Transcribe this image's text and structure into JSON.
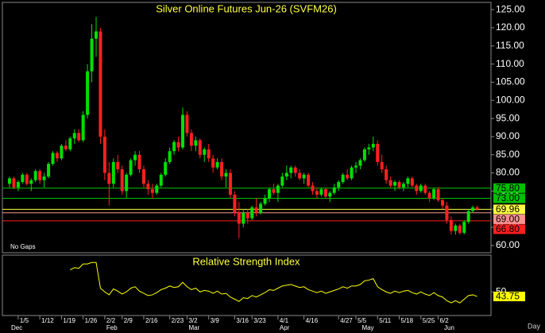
{
  "chart_data": [
    {
      "type": "candlestick",
      "title": "Silver Online Futures Jun-26 (SVFM26)",
      "annotations": [
        "No Gaps",
        "Day"
      ],
      "up_color": "#00e000",
      "down_color": "#ff2020",
      "categories": [
        null,
        null,
        "1/5",
        null,
        null,
        null,
        null,
        "1/12",
        null,
        null,
        null,
        null,
        "1/19",
        null,
        null,
        null,
        null,
        "1/26",
        null,
        null,
        null,
        null,
        "2/2",
        null,
        null,
        null,
        "2/9",
        null,
        null,
        null,
        null,
        "2/16",
        null,
        null,
        null,
        null,
        null,
        "2/23",
        null,
        null,
        null,
        "3/2",
        null,
        null,
        null,
        null,
        "3/9",
        null,
        null,
        null,
        null,
        null,
        "3/16",
        null,
        null,
        null,
        "3/23",
        null,
        null,
        null,
        null,
        null,
        "4/1",
        null,
        null,
        null,
        null,
        null,
        "4/16",
        null,
        null,
        null,
        null,
        null,
        null,
        null,
        "4/27",
        null,
        null,
        null,
        "5/5",
        null,
        null,
        null,
        null,
        "5/11",
        null,
        null,
        null,
        null,
        "5/18",
        null,
        null,
        null,
        null,
        "5/25",
        null,
        null,
        null,
        "6/2",
        null,
        null,
        null,
        null,
        null,
        null,
        null,
        null,
        null
      ],
      "months": [
        "Dec",
        null,
        null,
        null,
        null,
        null,
        null,
        null,
        null,
        null,
        null,
        null,
        null,
        null,
        null,
        null,
        null,
        null,
        null,
        null,
        null,
        null,
        "Feb",
        null,
        null,
        null,
        null,
        null,
        null,
        null,
        null,
        null,
        null,
        null,
        null,
        null,
        null,
        null,
        null,
        null,
        null,
        "Mar",
        null,
        null,
        null,
        null,
        null,
        null,
        null,
        null,
        null,
        null,
        null,
        null,
        null,
        null,
        null,
        null,
        null,
        null,
        null,
        null,
        "Apr",
        null,
        null,
        null,
        null,
        null,
        null,
        null,
        null,
        null,
        null,
        null,
        null,
        null,
        null,
        null,
        null,
        null,
        null,
        "May",
        null,
        null,
        null,
        null,
        null,
        null,
        null,
        null,
        null,
        null,
        null,
        null,
        null,
        null,
        null,
        null,
        null,
        null,
        "Jun",
        null,
        null,
        null,
        null,
        null,
        null,
        null,
        null
      ],
      "ohlc": [
        [
          77,
          79,
          76,
          78.5
        ],
        [
          78.5,
          79,
          75.5,
          76
        ],
        [
          76,
          78,
          75,
          77.5
        ],
        [
          77.5,
          80,
          77,
          79.5
        ],
        [
          79.5,
          80,
          76.5,
          77
        ],
        [
          77,
          78.5,
          75,
          78
        ],
        [
          78,
          81,
          77.5,
          80.5
        ],
        [
          80.5,
          81,
          77,
          78
        ],
        [
          78,
          80,
          76,
          79
        ],
        [
          79,
          83,
          78.5,
          82.5
        ],
        [
          82.5,
          86,
          82,
          85.5
        ],
        [
          85.5,
          86,
          83,
          84
        ],
        [
          84,
          88,
          83.5,
          87.5
        ],
        [
          87.5,
          89,
          86,
          86.5
        ],
        [
          86.5,
          90,
          86,
          89.5
        ],
        [
          89.5,
          92,
          88,
          91
        ],
        [
          91,
          92,
          88.5,
          89
        ],
        [
          89,
          97,
          88.5,
          96
        ],
        [
          96,
          110,
          95,
          108
        ],
        [
          108,
          121,
          105,
          117
        ],
        [
          117,
          123,
          112,
          119
        ],
        [
          119,
          120,
          88,
          90
        ],
        [
          90,
          92,
          78,
          80
        ],
        [
          80,
          83,
          71,
          77
        ],
        [
          77,
          84,
          76,
          83
        ],
        [
          83,
          85,
          80,
          81
        ],
        [
          81,
          82,
          74,
          75
        ],
        [
          75,
          80,
          73,
          79.5
        ],
        [
          79.5,
          84,
          79,
          83.5
        ],
        [
          83.5,
          86,
          82,
          85
        ],
        [
          85,
          86,
          80,
          81
        ],
        [
          81,
          82,
          76,
          77
        ],
        [
          77,
          78,
          74,
          75.5
        ],
        [
          75.5,
          77,
          73,
          74.5
        ],
        [
          74.5,
          77,
          74,
          76.5
        ],
        [
          76.5,
          80,
          76,
          79.5
        ],
        [
          79.5,
          84,
          79,
          83
        ],
        [
          83,
          87,
          82.5,
          86
        ],
        [
          86,
          89,
          85,
          88.5
        ],
        [
          88.5,
          90,
          86,
          87
        ],
        [
          87,
          98,
          86.5,
          96
        ],
        [
          96,
          97,
          90,
          91
        ],
        [
          91,
          92,
          86,
          87.5
        ],
        [
          87.5,
          90,
          86,
          89
        ],
        [
          89,
          89.5,
          84,
          85
        ],
        [
          85,
          87,
          83,
          86.5
        ],
        [
          86.5,
          88,
          83,
          84
        ],
        [
          84,
          85,
          80,
          81.5
        ],
        [
          81.5,
          84,
          81,
          83
        ],
        [
          83,
          84,
          78,
          79
        ],
        [
          79,
          81,
          76,
          80
        ],
        [
          80,
          81,
          73,
          74
        ],
        [
          74,
          75,
          68,
          69
        ],
        [
          69,
          72,
          62,
          66
        ],
        [
          66,
          70,
          65,
          69
        ],
        [
          69,
          70,
          66,
          67.5
        ],
        [
          67.5,
          71,
          67,
          70.5
        ],
        [
          70.5,
          73,
          68,
          69
        ],
        [
          69,
          72,
          68.5,
          71.5
        ],
        [
          71.5,
          74,
          71,
          73
        ],
        [
          73,
          76,
          72,
          75.5
        ],
        [
          75.5,
          77,
          74,
          74.5
        ],
        [
          74.5,
          77,
          72,
          76.5
        ],
        [
          76.5,
          80,
          76,
          79
        ],
        [
          79,
          82,
          78,
          80
        ],
        [
          80,
          82,
          78.5,
          81.5
        ],
        [
          81.5,
          82,
          79,
          80
        ],
        [
          80,
          81,
          78,
          78.5
        ],
        [
          78.5,
          80,
          77,
          79.5
        ],
        [
          79.5,
          80,
          76,
          76.5
        ],
        [
          76.5,
          77.5,
          74,
          75
        ],
        [
          75,
          76,
          73,
          74
        ],
        [
          74,
          76,
          73.5,
          75.5
        ],
        [
          75.5,
          76,
          73,
          73.5
        ],
        [
          73.5,
          75,
          72,
          74.5
        ],
        [
          74.5,
          77,
          74,
          76
        ],
        [
          76,
          78,
          75,
          77.5
        ],
        [
          77.5,
          80,
          77,
          79.5
        ],
        [
          79.5,
          81,
          78,
          78.5
        ],
        [
          78.5,
          82,
          78,
          81.5
        ],
        [
          81.5,
          83,
          80,
          82
        ],
        [
          82,
          84,
          81,
          83.5
        ],
        [
          83.5,
          87,
          83,
          86.5
        ],
        [
          86.5,
          88,
          85,
          87
        ],
        [
          87,
          90,
          86,
          88
        ],
        [
          88,
          89,
          82,
          83
        ],
        [
          83,
          85,
          80,
          81
        ],
        [
          81,
          82,
          77,
          78
        ],
        [
          78,
          79,
          76,
          76.5
        ],
        [
          76.5,
          78,
          75,
          77.5
        ],
        [
          77.5,
          78,
          75.5,
          76
        ],
        [
          76,
          77.5,
          75,
          77
        ],
        [
          77,
          79,
          76,
          78.5
        ],
        [
          78.5,
          79,
          76,
          76.5
        ],
        [
          76.5,
          77,
          74,
          75
        ],
        [
          75,
          77,
          74.5,
          76.5
        ],
        [
          76.5,
          77,
          74,
          74.5
        ],
        [
          74.5,
          75,
          72,
          73
        ],
        [
          73,
          76,
          72.5,
          75.5
        ],
        [
          75.5,
          76,
          72,
          72.5
        ],
        [
          72.5,
          73,
          70,
          71
        ],
        [
          71,
          72,
          66,
          67
        ],
        [
          67,
          68,
          63,
          64
        ],
        [
          64,
          66,
          63,
          65.5
        ],
        [
          65.5,
          66,
          63,
          63.5
        ],
        [
          63.5,
          67,
          63,
          66.5
        ],
        [
          66.5,
          70,
          66,
          69.5
        ],
        [
          69.5,
          71,
          69,
          70.5
        ],
        [
          70.5,
          71,
          69.5,
          69.96
        ]
      ],
      "levels": [
        {
          "value": 75.8,
          "label": "75.80",
          "color": "#00c000"
        },
        {
          "value": 73,
          "label": "73.00",
          "color": "#00c000"
        },
        {
          "value": 69.96,
          "label": "69.96",
          "color": "#ffff40"
        },
        {
          "value": 69,
          "label": "69.00",
          "color": "#ff9090"
        },
        {
          "value": 66.8,
          "label": "66.80",
          "color": "#ff2020"
        }
      ],
      "ylim": [
        58,
        127
      ],
      "yticks": [
        {
          "value": 125,
          "label": "125.00"
        },
        {
          "value": 120,
          "label": "120.00"
        },
        {
          "value": 115,
          "label": "115.00"
        },
        {
          "value": 110,
          "label": "110.00"
        },
        {
          "value": 105,
          "label": "105.00"
        },
        {
          "value": 100,
          "label": "100.00"
        },
        {
          "value": 95,
          "label": "95.00"
        },
        {
          "value": 90,
          "label": "90.00"
        },
        {
          "value": 85,
          "label": "85.00"
        },
        {
          "value": 80,
          "label": "80.00"
        },
        {
          "value": 75,
          "label": "75.00"
        },
        {
          "value": 70,
          "label": "70.00"
        },
        {
          "value": 65,
          "label": "65.00"
        },
        {
          "value": 60,
          "label": "60.00"
        }
      ]
    },
    {
      "type": "line",
      "title": "Relative Strength Index",
      "color": "#ffff00",
      "values": [
        null,
        null,
        null,
        null,
        null,
        null,
        null,
        null,
        null,
        null,
        null,
        null,
        null,
        null,
        80,
        83,
        82,
        88,
        88,
        90,
        90,
        55,
        50,
        46,
        54,
        51,
        47,
        50,
        55,
        57,
        51,
        48,
        45,
        46,
        49,
        53,
        55,
        58,
        56,
        57,
        63,
        57,
        53,
        55,
        50,
        52,
        51,
        48,
        51,
        47,
        48,
        43,
        40,
        37,
        42,
        41,
        45,
        43,
        46,
        49,
        53,
        52,
        55,
        58,
        59,
        60,
        58,
        56,
        57,
        53,
        51,
        49,
        51,
        48,
        50,
        52,
        54,
        57,
        55,
        58,
        58,
        60,
        65,
        66,
        68,
        57,
        53,
        50,
        48,
        51,
        49,
        51,
        52,
        49,
        47,
        50,
        47,
        45,
        49,
        45,
        43,
        38,
        35,
        38,
        35,
        40,
        45,
        46,
        43.75
      ],
      "last_label": "43.75",
      "ylim": [
        20,
        100
      ],
      "yticks": [
        50
      ]
    }
  ]
}
